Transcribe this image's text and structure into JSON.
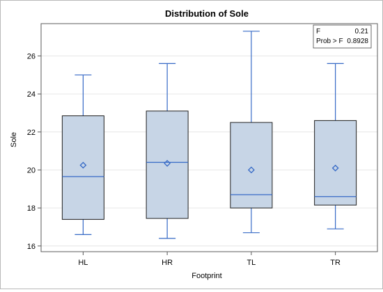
{
  "chart_data": {
    "type": "box",
    "title": "Distribution of Sole",
    "xlabel": "Footprint",
    "ylabel": "Sole",
    "ylim": [
      15.7,
      27.7
    ],
    "yticks": [
      16,
      18,
      20,
      22,
      24,
      26
    ],
    "ytick_labels": [
      "16",
      "18",
      "20",
      "22",
      "24",
      "26"
    ],
    "grid": true,
    "categories": [
      "HL",
      "HR",
      "TL",
      "TR"
    ],
    "boxes": [
      {
        "category": "HL",
        "min": 16.6,
        "q1": 17.4,
        "median": 19.65,
        "q3": 22.85,
        "max": 25.0,
        "mean": 20.25
      },
      {
        "category": "HR",
        "min": 16.4,
        "q1": 17.45,
        "median": 20.4,
        "q3": 23.1,
        "max": 25.6,
        "mean": 20.35
      },
      {
        "category": "TL",
        "min": 16.7,
        "q1": 18.0,
        "median": 18.7,
        "q3": 22.5,
        "max": 27.3,
        "mean": 20.0
      },
      {
        "category": "TR",
        "min": 16.9,
        "q1": 18.15,
        "median": 18.6,
        "q3": 22.6,
        "max": 25.6,
        "mean": 20.1
      }
    ],
    "stats_inset": {
      "position": "top-right",
      "rows": [
        {
          "label": "F",
          "value": "0.21"
        },
        {
          "label": "Prob > F",
          "value": "0.8928"
        }
      ]
    },
    "colors": {
      "box_fill": "#c7d5e6",
      "box_edge": "#1f1f1f",
      "whisker": "#3569c6",
      "mean_marker": "#3569c6",
      "median": "#3569c6",
      "grid": "#e6e6e6",
      "axis": "#5a5a5a"
    }
  }
}
